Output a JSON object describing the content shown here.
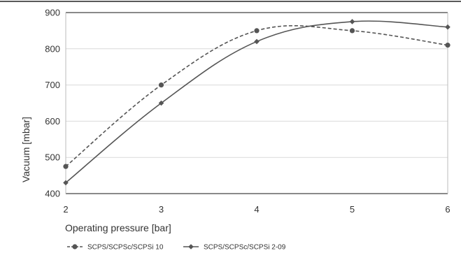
{
  "chart_data": {
    "type": "line",
    "xlabel": "Operating pressure [bar]",
    "ylabel": "Vacuum [mbar]",
    "xlim": [
      2,
      6
    ],
    "ylim": [
      400,
      900
    ],
    "x_ticks": [
      "2",
      "3",
      "4",
      "5",
      "6"
    ],
    "y_ticks": [
      "400",
      "500",
      "600",
      "700",
      "800",
      "900"
    ],
    "grid": "horizontal",
    "legend_position": "bottom-left",
    "x": [
      2,
      3,
      4,
      5,
      6
    ],
    "series": [
      {
        "name": "SCPS/SCPSc/SCPSi 10",
        "values": [
          475,
          700,
          850,
          850,
          810
        ],
        "style": "dashed",
        "marker": "circle",
        "color": "#555555"
      },
      {
        "name": "SCPS/SCPSc/SCPSi 2-09",
        "values": [
          430,
          650,
          820,
          875,
          860
        ],
        "style": "solid",
        "marker": "diamond",
        "color": "#555555"
      }
    ]
  }
}
